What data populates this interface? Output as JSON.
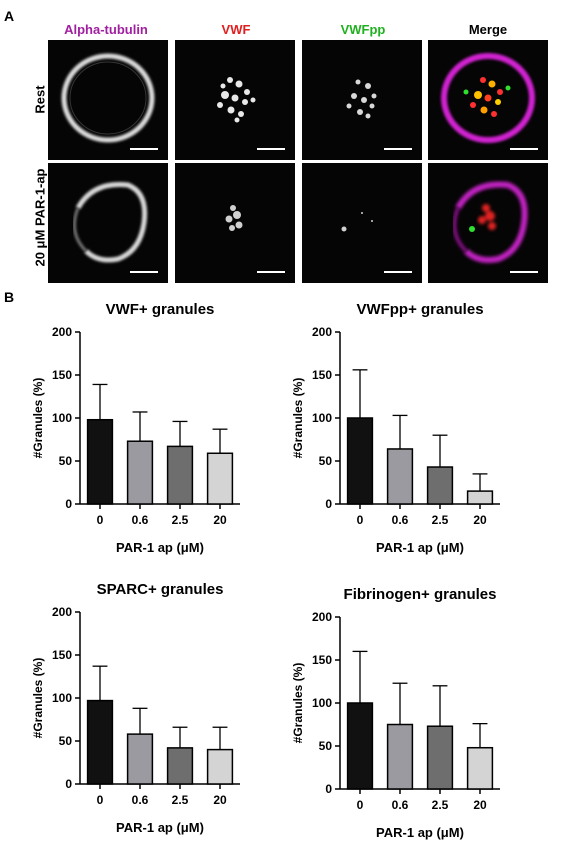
{
  "panel_a": {
    "letter": "A",
    "columns": [
      {
        "label": "Alpha-tubulin",
        "color": "#a020a0"
      },
      {
        "label": "VWF",
        "color": "#e02020"
      },
      {
        "label": "VWFpp",
        "color": "#20b020"
      },
      {
        "label": "Merge",
        "color": "#000000"
      }
    ],
    "rows": [
      {
        "label": "Rest"
      },
      {
        "label": "20 μM PAR-1-ap"
      }
    ]
  },
  "panel_b": {
    "letter": "B"
  },
  "chart_data": [
    {
      "type": "bar",
      "title": "VWF+ granules",
      "xlabel": "PAR-1 ap (μM)",
      "ylabel": "#Granules (%)",
      "categories": [
        "0",
        "0.6",
        "2.5",
        "20"
      ],
      "values": [
        98,
        73,
        67,
        59
      ],
      "errors": [
        41,
        34,
        29,
        28
      ],
      "ylim": [
        0,
        200
      ],
      "yticks": [
        "0",
        "50",
        "100",
        "150",
        "200"
      ],
      "bar_colors": [
        "#111111",
        "#9a9aa0",
        "#6e6e6e",
        "#d4d4d4"
      ]
    },
    {
      "type": "bar",
      "title": "VWFpp+ granules",
      "xlabel": "PAR-1 ap (μM)",
      "ylabel": "#Granules (%)",
      "categories": [
        "0",
        "0.6",
        "2.5",
        "20"
      ],
      "values": [
        100,
        64,
        43,
        15
      ],
      "errors": [
        56,
        39,
        37,
        20
      ],
      "ylim": [
        0,
        200
      ],
      "yticks": [
        "0",
        "50",
        "100",
        "150",
        "200"
      ],
      "bar_colors": [
        "#111111",
        "#9a9aa0",
        "#6e6e6e",
        "#d4d4d4"
      ]
    },
    {
      "type": "bar",
      "title": "SPARC+ granules",
      "xlabel": "PAR-1 ap (μM)",
      "ylabel": "#Granules (%)",
      "categories": [
        "0",
        "0.6",
        "2.5",
        "20"
      ],
      "values": [
        97,
        58,
        42,
        40
      ],
      "errors": [
        40,
        30,
        24,
        26
      ],
      "ylim": [
        0,
        200
      ],
      "yticks": [
        "0",
        "50",
        "100",
        "150",
        "200"
      ],
      "bar_colors": [
        "#111111",
        "#9a9aa0",
        "#6e6e6e",
        "#d4d4d4"
      ]
    },
    {
      "type": "bar",
      "title": "Fibrinogen+ granules",
      "xlabel": "PAR-1 ap (μM)",
      "ylabel": "#Granules (%)",
      "categories": [
        "0",
        "0.6",
        "2.5",
        "20"
      ],
      "values": [
        100,
        75,
        73,
        48
      ],
      "errors": [
        60,
        48,
        47,
        28
      ],
      "ylim": [
        0,
        200
      ],
      "yticks": [
        "0",
        "50",
        "100",
        "150",
        "200"
      ],
      "bar_colors": [
        "#111111",
        "#9a9aa0",
        "#6e6e6e",
        "#d4d4d4"
      ]
    }
  ]
}
